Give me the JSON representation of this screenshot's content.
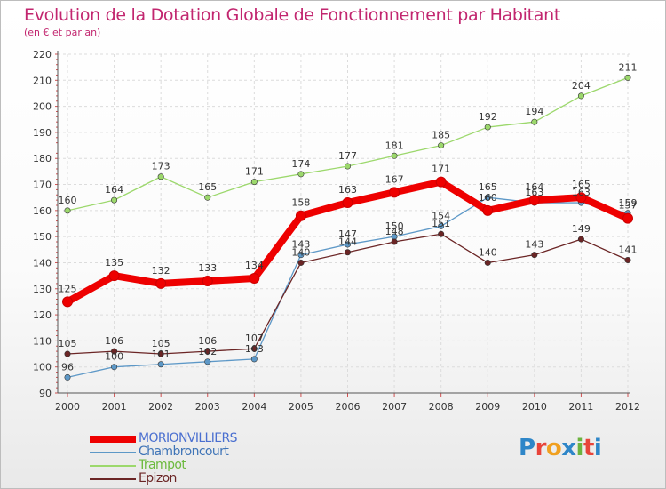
{
  "title": "Evolution de la Dotation Globale de Fonctionnement par Habitant",
  "subtitle": "(en € et par an)",
  "logo": {
    "text": "Proxiti",
    "colors": [
      "#2e86c8",
      "#e8443a",
      "#f0a020",
      "#2e86c8",
      "#6cb33f",
      "#e8443a",
      "#2e86c8"
    ]
  },
  "chart_data": {
    "type": "line",
    "title": "Evolution de la Dotation Globale de Fonctionnement par Habitant",
    "subtitle": "(en € et par an)",
    "xlabel": "",
    "ylabel": "",
    "x": [
      2000,
      2001,
      2002,
      2003,
      2004,
      2005,
      2006,
      2007,
      2008,
      2009,
      2010,
      2011,
      2012
    ],
    "yticks": [
      90,
      100,
      110,
      120,
      130,
      140,
      150,
      160,
      170,
      180,
      190,
      200,
      210,
      220
    ],
    "ylim": [
      90,
      220
    ],
    "grid": true,
    "series": [
      {
        "name": "MORIONVILLIERS",
        "color": "#ee0000",
        "labelColor": "#4a6fd0",
        "thick": true,
        "values": [
          125,
          135,
          132,
          133,
          134,
          158,
          163,
          167,
          171,
          160,
          164,
          165,
          157
        ]
      },
      {
        "name": "Chambroncourt",
        "color": "#5d98c7",
        "labelColor": "#3f74b7",
        "thick": false,
        "values": [
          96,
          100,
          101,
          102,
          103,
          143,
          147,
          150,
          154,
          165,
          163,
          163,
          159
        ]
      },
      {
        "name": "Trampot",
        "color": "#9cd86c",
        "labelColor": "#6cba3e",
        "thick": false,
        "values": [
          160,
          164,
          173,
          165,
          171,
          174,
          177,
          181,
          185,
          192,
          194,
          204,
          211
        ]
      },
      {
        "name": "Epizon",
        "color": "#6b2525",
        "labelColor": "#6b2525",
        "thick": false,
        "values": [
          105,
          106,
          105,
          106,
          107,
          140,
          144,
          148,
          151,
          140,
          143,
          149,
          141
        ]
      }
    ]
  }
}
